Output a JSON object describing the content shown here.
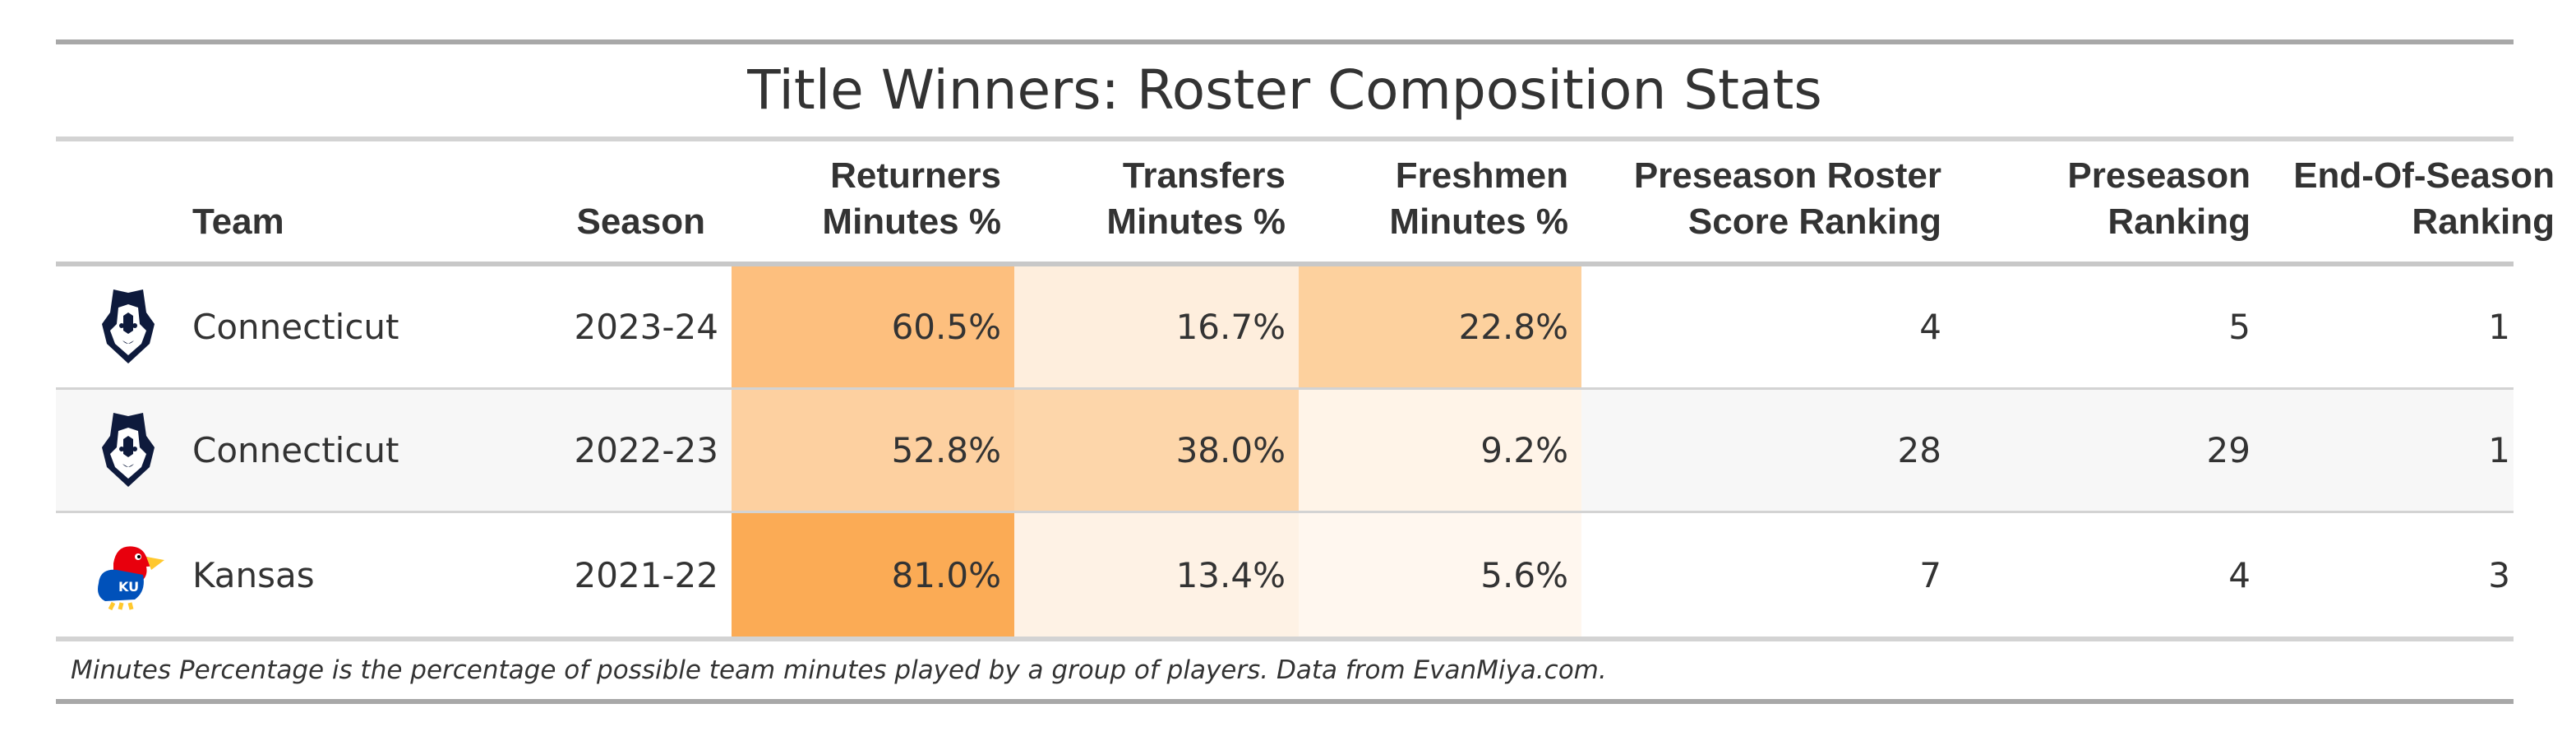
{
  "table": {
    "title": "Title Winners: Roster Composition Stats",
    "headers": {
      "team": "Team",
      "season": "Season",
      "returners": "Returners\nMinutes %",
      "transfers": "Transfers\nMinutes %",
      "freshmen": "Freshmen\nMinutes %",
      "roster_score": "Preseason Roster\nScore Ranking",
      "preseason": "Preseason\nRanking",
      "end_of_season": "End-Of-Season\nRanking"
    },
    "rows": [
      {
        "logo_icon": "uconn-husky-logo-icon",
        "team": "Connecticut",
        "season": "2023-24",
        "returners": "60.5%",
        "transfers": "16.7%",
        "freshmen": "22.8%",
        "roster_score": "4",
        "preseason": "5",
        "end_of_season": "1"
      },
      {
        "logo_icon": "uconn-husky-logo-icon",
        "team": "Connecticut",
        "season": "2022-23",
        "returners": "52.8%",
        "transfers": "38.0%",
        "freshmen": "9.2%",
        "roster_score": "28",
        "preseason": "29",
        "end_of_season": "1"
      },
      {
        "logo_icon": "kansas-jayhawk-logo-icon",
        "team": "Kansas",
        "season": "2021-22",
        "returners": "81.0%",
        "transfers": "13.4%",
        "freshmen": "5.6%",
        "roster_score": "7",
        "preseason": "4",
        "end_of_season": "3"
      }
    ],
    "footnote": "Minutes Percentage is the percentage of possible team minutes played by a group of players. Data from EvanMiya.com.",
    "kansas_logo_text": "KU",
    "colors": {
      "returners": [
        "#fdbf7e",
        "#fdd0a0",
        "#fbab55"
      ],
      "transfers": [
        "#feeedd",
        "#fdd6aa",
        "#fef2e5"
      ],
      "freshmen": [
        "#fdd19e",
        "#fff4e8",
        "#fff7ef"
      ]
    }
  }
}
